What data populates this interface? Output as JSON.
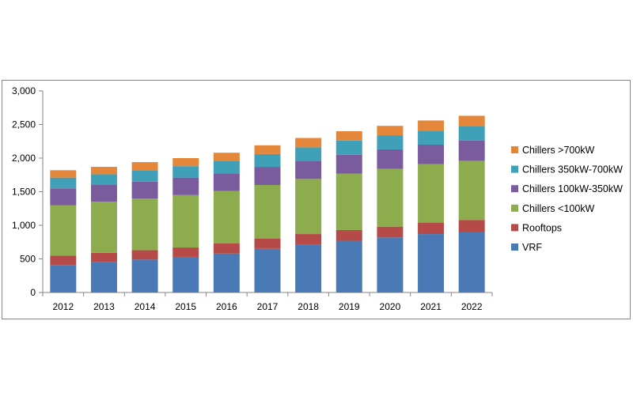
{
  "chart_data": {
    "type": "bar",
    "stacked": true,
    "categories": [
      "2012",
      "2013",
      "2014",
      "2015",
      "2016",
      "2017",
      "2018",
      "2019",
      "2020",
      "2021",
      "2022"
    ],
    "series": [
      {
        "name": "VRF",
        "color": "#4a7ab5",
        "values": [
          410,
          450,
          490,
          530,
          580,
          650,
          710,
          770,
          820,
          870,
          900
        ]
      },
      {
        "name": "Rooftops",
        "color": "#b54a48",
        "values": [
          140,
          140,
          140,
          140,
          150,
          150,
          160,
          160,
          160,
          170,
          180
        ]
      },
      {
        "name": "Chillers <100kW",
        "color": "#8dac4e",
        "values": [
          750,
          760,
          770,
          780,
          780,
          800,
          820,
          840,
          860,
          870,
          880
        ]
      },
      {
        "name": "Chillers 100kW-350kW",
        "color": "#7a5c9e",
        "values": [
          250,
          250,
          250,
          260,
          260,
          270,
          270,
          280,
          290,
          290,
          300
        ]
      },
      {
        "name": "Chillers 350kW-700kW",
        "color": "#3fa0b8",
        "values": [
          160,
          160,
          170,
          170,
          190,
          190,
          200,
          210,
          210,
          210,
          220
        ]
      },
      {
        "name": "Chillers >700kW",
        "color": "#e4873a",
        "values": [
          110,
          110,
          120,
          120,
          120,
          130,
          140,
          140,
          140,
          150,
          150
        ]
      }
    ],
    "yticks": [
      "0",
      "500",
      "1,000",
      "1,500",
      "2,000",
      "2,500",
      "3,000"
    ],
    "ylim": [
      0,
      3000
    ],
    "grid": false,
    "legend_position": "right",
    "legend_order": [
      5,
      4,
      3,
      2,
      1,
      0
    ]
  }
}
